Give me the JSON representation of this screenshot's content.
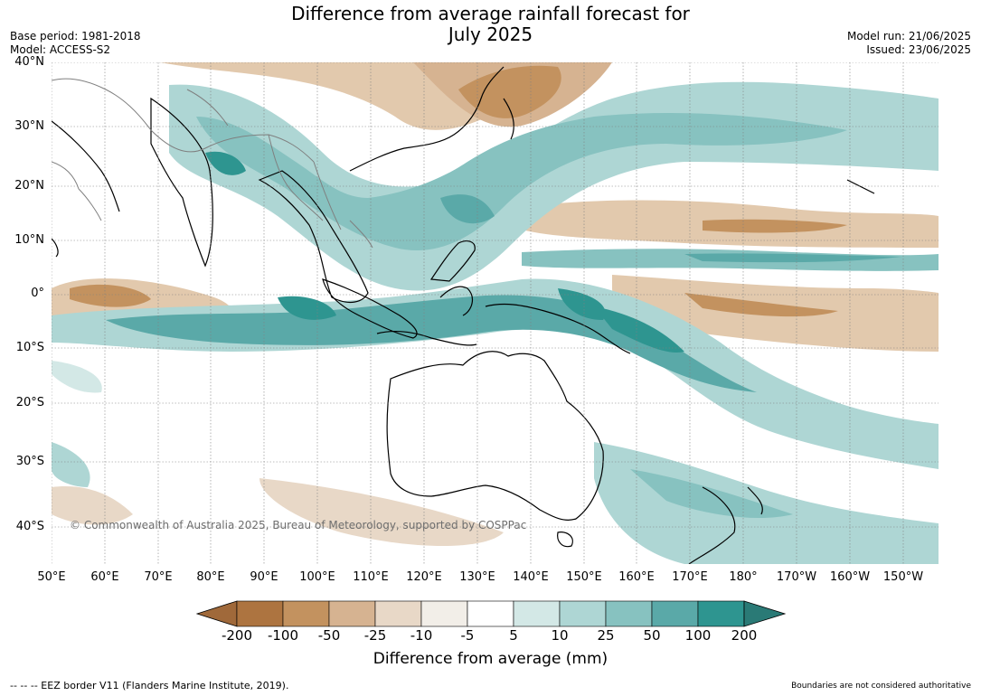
{
  "title_line1": "Difference from average rainfall forecast for",
  "title_line2": "July 2025",
  "meta_left": {
    "base_period": "Base period: 1981-2018",
    "model": "Model: ACCESS-S2"
  },
  "meta_right": {
    "model_run": "Model run: 21/06/2025",
    "issued": "Issued: 23/06/2025"
  },
  "lat_labels": [
    "40°N",
    "30°N",
    "20°N",
    "10°N",
    "0°",
    "10°S",
    "20°S",
    "30°S",
    "40°S"
  ],
  "lon_labels": [
    "50°E",
    "60°E",
    "70°E",
    "80°E",
    "90°E",
    "100°E",
    "110°E",
    "120°E",
    "130°E",
    "140°E",
    "150°E",
    "160°E",
    "170°E",
    "180°",
    "170°W",
    "160°W",
    "150°W"
  ],
  "copyright": "© Commonwealth of Australia 2025, Bureau of Meteorology, supported by COSPPac",
  "colorbar": {
    "ticks": [
      "-200",
      "-100",
      "-50",
      "-25",
      "-10",
      "-5",
      "5",
      "10",
      "25",
      "50",
      "100",
      "200"
    ],
    "colors": [
      "#a0693a",
      "#ad7440",
      "#c3925f",
      "#d6b391",
      "#e8d8c7",
      "#f2eee8",
      "#ffffff",
      "#d3e8e6",
      "#aed6d4",
      "#87c2c0",
      "#5aa9a8",
      "#2e9590",
      "#2a7a76"
    ],
    "title": "Difference from average (mm)"
  },
  "eez_note": "--  --  -- EEZ border V11 (Flanders Marine Institute, 2019).",
  "boundary_note": "Boundaries are not considered authoritative"
}
